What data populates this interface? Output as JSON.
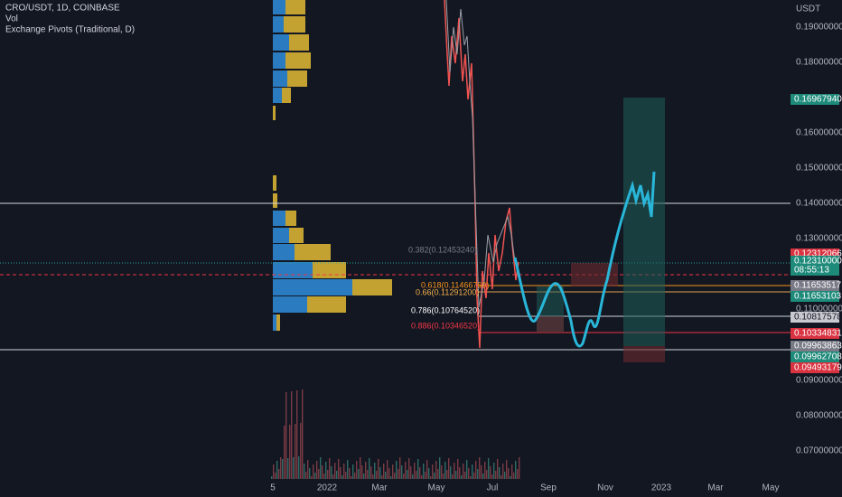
{
  "header": {
    "symbol": "CRO/USDT, 1D, COINBASE",
    "indicator_1": "Vol",
    "indicator_2": "Exchange Pivots (Traditional, D)"
  },
  "price_axis": {
    "unit": "USDT",
    "labels": [
      "0.19000000",
      "0.18000000",
      "0.16000000",
      "0.15000000",
      "0.14000000",
      "0.13000000",
      "0.11000000",
      "0.09000000",
      "0.08000000",
      "0.07000000"
    ]
  },
  "price_badges": [
    "0.16967940",
    "0.12312066",
    "0.12310000",
    "08:55:13",
    "0.11653517",
    "0.11653103",
    "0.10817578",
    "0.10334831",
    "0.09963863",
    "0.09962708",
    "0.09493179"
  ],
  "time_axis": {
    "labels": [
      "5",
      "2022",
      "Mar",
      "May",
      "Jul",
      "Sep",
      "Nov",
      "2023",
      "Mar",
      "May"
    ]
  },
  "fib_labels": [
    "0.382(0.12453240)",
    "0.618(0.11466760)",
    "0.66(0.11291200)",
    "0.786(0.10764520)",
    "0.886(0.10346520)"
  ]
}
